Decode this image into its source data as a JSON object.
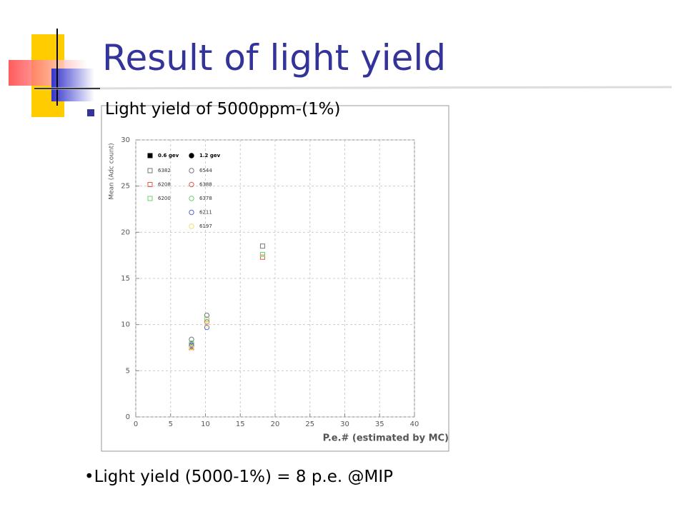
{
  "header": {
    "title": "Result of light yield"
  },
  "bullet": "Light yield of 5000ppm-(1%)",
  "footer": "•Light yield (5000-1%) = 8 p.e. @MIP",
  "chart_data": {
    "type": "scatter",
    "x_label": "P.e.# (estimated by MC)",
    "y_label": "Mean (Adc count)",
    "legend_groups": [
      {
        "name": "0.6 gev",
        "marker": "square"
      },
      {
        "name": "1.2 gev",
        "marker": "circle"
      }
    ],
    "xlim": [
      0,
      40
    ],
    "xticks": [
      0,
      5,
      10,
      15,
      20,
      25,
      30,
      35,
      40
    ],
    "ylim": [
      0,
      30
    ],
    "yticks": [
      0,
      5,
      10,
      15,
      20,
      25,
      30
    ],
    "grid": true,
    "series": [
      {
        "name": "6382",
        "marker": "square",
        "color": "#777777",
        "x": [
          8,
          18.2
        ],
        "values": [
          7.7,
          18.5
        ]
      },
      {
        "name": "6208",
        "marker": "square",
        "color": "#e05a4a",
        "x": [
          8,
          18.2
        ],
        "values": [
          7.5,
          17.3
        ]
      },
      {
        "name": "6200",
        "marker": "square",
        "color": "#6ad06a",
        "x": [
          8,
          18.2
        ],
        "values": [
          7.9,
          17.6
        ]
      },
      {
        "name": "6544",
        "marker": "circle",
        "color": "#777777",
        "x": [
          8,
          10.2
        ],
        "values": [
          8.4,
          11.0
        ]
      },
      {
        "name": "6388",
        "marker": "circle",
        "color": "#e05a4a",
        "x": [
          8,
          10.2
        ],
        "values": [
          7.6,
          10.3
        ]
      },
      {
        "name": "6378",
        "marker": "circle",
        "color": "#6ad06a",
        "x": [
          8,
          10.2
        ],
        "values": [
          8.0,
          10.6
        ]
      },
      {
        "name": "6211",
        "marker": "circle",
        "color": "#5566cc",
        "x": [
          8,
          10.2
        ],
        "values": [
          7.8,
          9.7
        ]
      },
      {
        "name": "6197",
        "marker": "circle",
        "color": "#f0e070",
        "x": [
          8,
          10.2
        ],
        "values": [
          7.5,
          10.0
        ]
      }
    ]
  }
}
